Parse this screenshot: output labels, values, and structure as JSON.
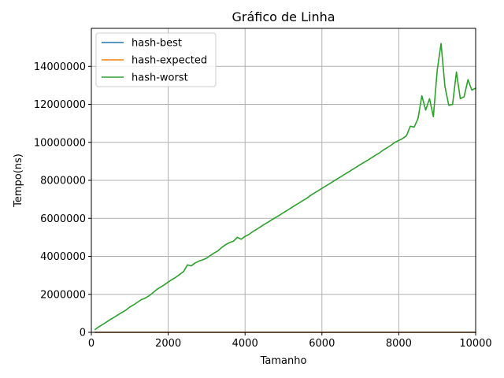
{
  "chart_data": {
    "type": "line",
    "title": "Gráfico de Linha",
    "xlabel": "Tamanho",
    "ylabel": "Tempo(ns)",
    "xlim": [
      0,
      10000
    ],
    "ylim": [
      0,
      16000000
    ],
    "xticks": [
      0,
      2000,
      4000,
      6000,
      8000,
      10000
    ],
    "xtick_labels": [
      "0",
      "2000",
      "4000",
      "6000",
      "8000",
      "10000"
    ],
    "yticks": [
      0,
      2000000,
      4000000,
      6000000,
      8000000,
      10000000,
      12000000,
      14000000
    ],
    "ytick_labels": [
      "0",
      "2000000",
      "4000000",
      "6000000",
      "8000000",
      "10000000",
      "12000000",
      "14000000"
    ],
    "grid": true,
    "legend_position": "top-left",
    "x": [
      100,
      200,
      300,
      400,
      500,
      600,
      700,
      800,
      900,
      1000,
      1100,
      1200,
      1300,
      1400,
      1500,
      1600,
      1700,
      1800,
      1900,
      2000,
      2100,
      2200,
      2300,
      2400,
      2500,
      2600,
      2700,
      2800,
      2900,
      3000,
      3100,
      3200,
      3300,
      3400,
      3500,
      3600,
      3700,
      3800,
      3900,
      4000,
      4100,
      4200,
      4300,
      4400,
      4500,
      4600,
      4700,
      4800,
      4900,
      5000,
      5100,
      5200,
      5300,
      5400,
      5500,
      5600,
      5700,
      5800,
      5900,
      6000,
      6100,
      6200,
      6300,
      6400,
      6500,
      6600,
      6700,
      6800,
      6900,
      7000,
      7100,
      7200,
      7300,
      7400,
      7500,
      7600,
      7700,
      7800,
      7900,
      8000,
      8100,
      8200,
      8300,
      8400,
      8500,
      8600,
      8700,
      8800,
      8900,
      9000,
      9100,
      9200,
      9300,
      9400,
      9500,
      9600,
      9700,
      9800,
      9900,
      10000
    ],
    "series": [
      {
        "name": "hash-best",
        "color": "#1f77b4",
        "values": [
          0,
          0,
          0,
          0,
          0,
          0,
          0,
          0,
          0,
          0,
          0,
          0,
          0,
          0,
          0,
          0,
          0,
          0,
          0,
          0,
          0,
          0,
          0,
          0,
          0,
          0,
          0,
          0,
          0,
          0,
          0,
          0,
          0,
          0,
          0,
          0,
          0,
          0,
          0,
          0,
          0,
          0,
          0,
          0,
          0,
          0,
          0,
          0,
          0,
          0,
          0,
          0,
          0,
          0,
          0,
          0,
          0,
          0,
          0,
          0,
          0,
          0,
          0,
          0,
          0,
          0,
          0,
          0,
          0,
          0,
          0,
          0,
          0,
          0,
          0,
          0,
          0,
          0,
          0,
          0,
          0,
          0,
          0,
          0,
          0,
          0,
          0,
          0,
          0,
          0,
          0,
          0,
          0,
          0,
          0,
          0,
          0,
          0,
          0,
          0
        ]
      },
      {
        "name": "hash-expected",
        "color": "#ff7f0e",
        "values": [
          0,
          0,
          0,
          0,
          0,
          0,
          0,
          0,
          0,
          0,
          0,
          0,
          0,
          0,
          0,
          0,
          0,
          0,
          0,
          0,
          0,
          0,
          0,
          0,
          0,
          0,
          0,
          0,
          0,
          0,
          0,
          0,
          0,
          0,
          0,
          0,
          0,
          0,
          0,
          0,
          0,
          0,
          0,
          0,
          0,
          0,
          0,
          0,
          0,
          0,
          0,
          0,
          0,
          0,
          0,
          0,
          0,
          0,
          0,
          0,
          0,
          0,
          0,
          0,
          0,
          0,
          0,
          0,
          0,
          0,
          0,
          0,
          0,
          0,
          0,
          0,
          0,
          0,
          0,
          0,
          0,
          0,
          0,
          0,
          0,
          0,
          0,
          0,
          0,
          0,
          0,
          0,
          0,
          0,
          0,
          0,
          0,
          0,
          0,
          0
        ]
      },
      {
        "name": "hash-worst",
        "color": "#2ca02c",
        "values": [
          150000,
          300000,
          420000,
          550000,
          680000,
          800000,
          930000,
          1050000,
          1170000,
          1330000,
          1450000,
          1580000,
          1720000,
          1800000,
          1920000,
          2080000,
          2250000,
          2380000,
          2500000,
          2650000,
          2780000,
          2900000,
          3050000,
          3200000,
          3550000,
          3500000,
          3650000,
          3750000,
          3820000,
          3900000,
          4050000,
          4180000,
          4300000,
          4480000,
          4620000,
          4730000,
          4800000,
          5000000,
          4900000,
          5050000,
          5150000,
          5300000,
          5420000,
          5550000,
          5680000,
          5800000,
          5930000,
          6050000,
          6170000,
          6300000,
          6420000,
          6550000,
          6680000,
          6800000,
          6930000,
          7050000,
          7200000,
          7330000,
          7450000,
          7580000,
          7700000,
          7820000,
          7950000,
          8080000,
          8200000,
          8330000,
          8450000,
          8580000,
          8700000,
          8830000,
          8950000,
          9070000,
          9200000,
          9330000,
          9450000,
          9600000,
          9720000,
          9850000,
          10000000,
          10100000,
          10200000,
          10350000,
          10850000,
          10800000,
          11250000,
          12450000,
          11700000,
          12300000,
          11350000,
          13800000,
          15200000,
          12950000,
          11950000,
          12000000,
          13700000,
          12300000,
          12400000,
          13300000,
          12750000,
          12850000
        ]
      }
    ]
  }
}
